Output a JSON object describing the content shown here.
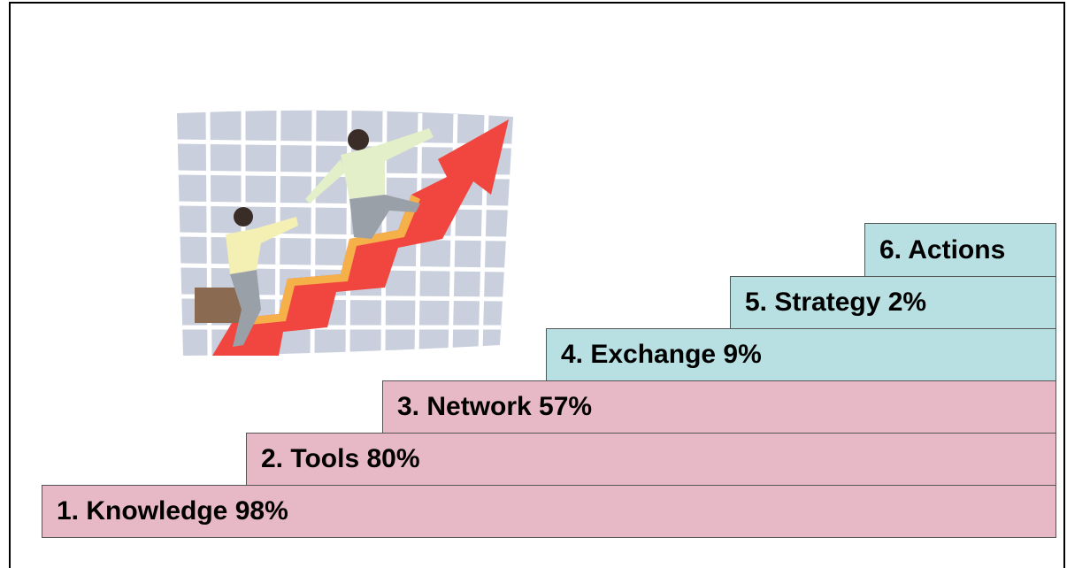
{
  "steps": [
    {
      "label": "1. Knowledge 98%"
    },
    {
      "label": "2. Tools 80%"
    },
    {
      "label": "3. Network 57%"
    },
    {
      "label": "4. Exchange 9%"
    },
    {
      "label": "5. Strategy 2%"
    },
    {
      "label": "6. Actions"
    }
  ]
}
